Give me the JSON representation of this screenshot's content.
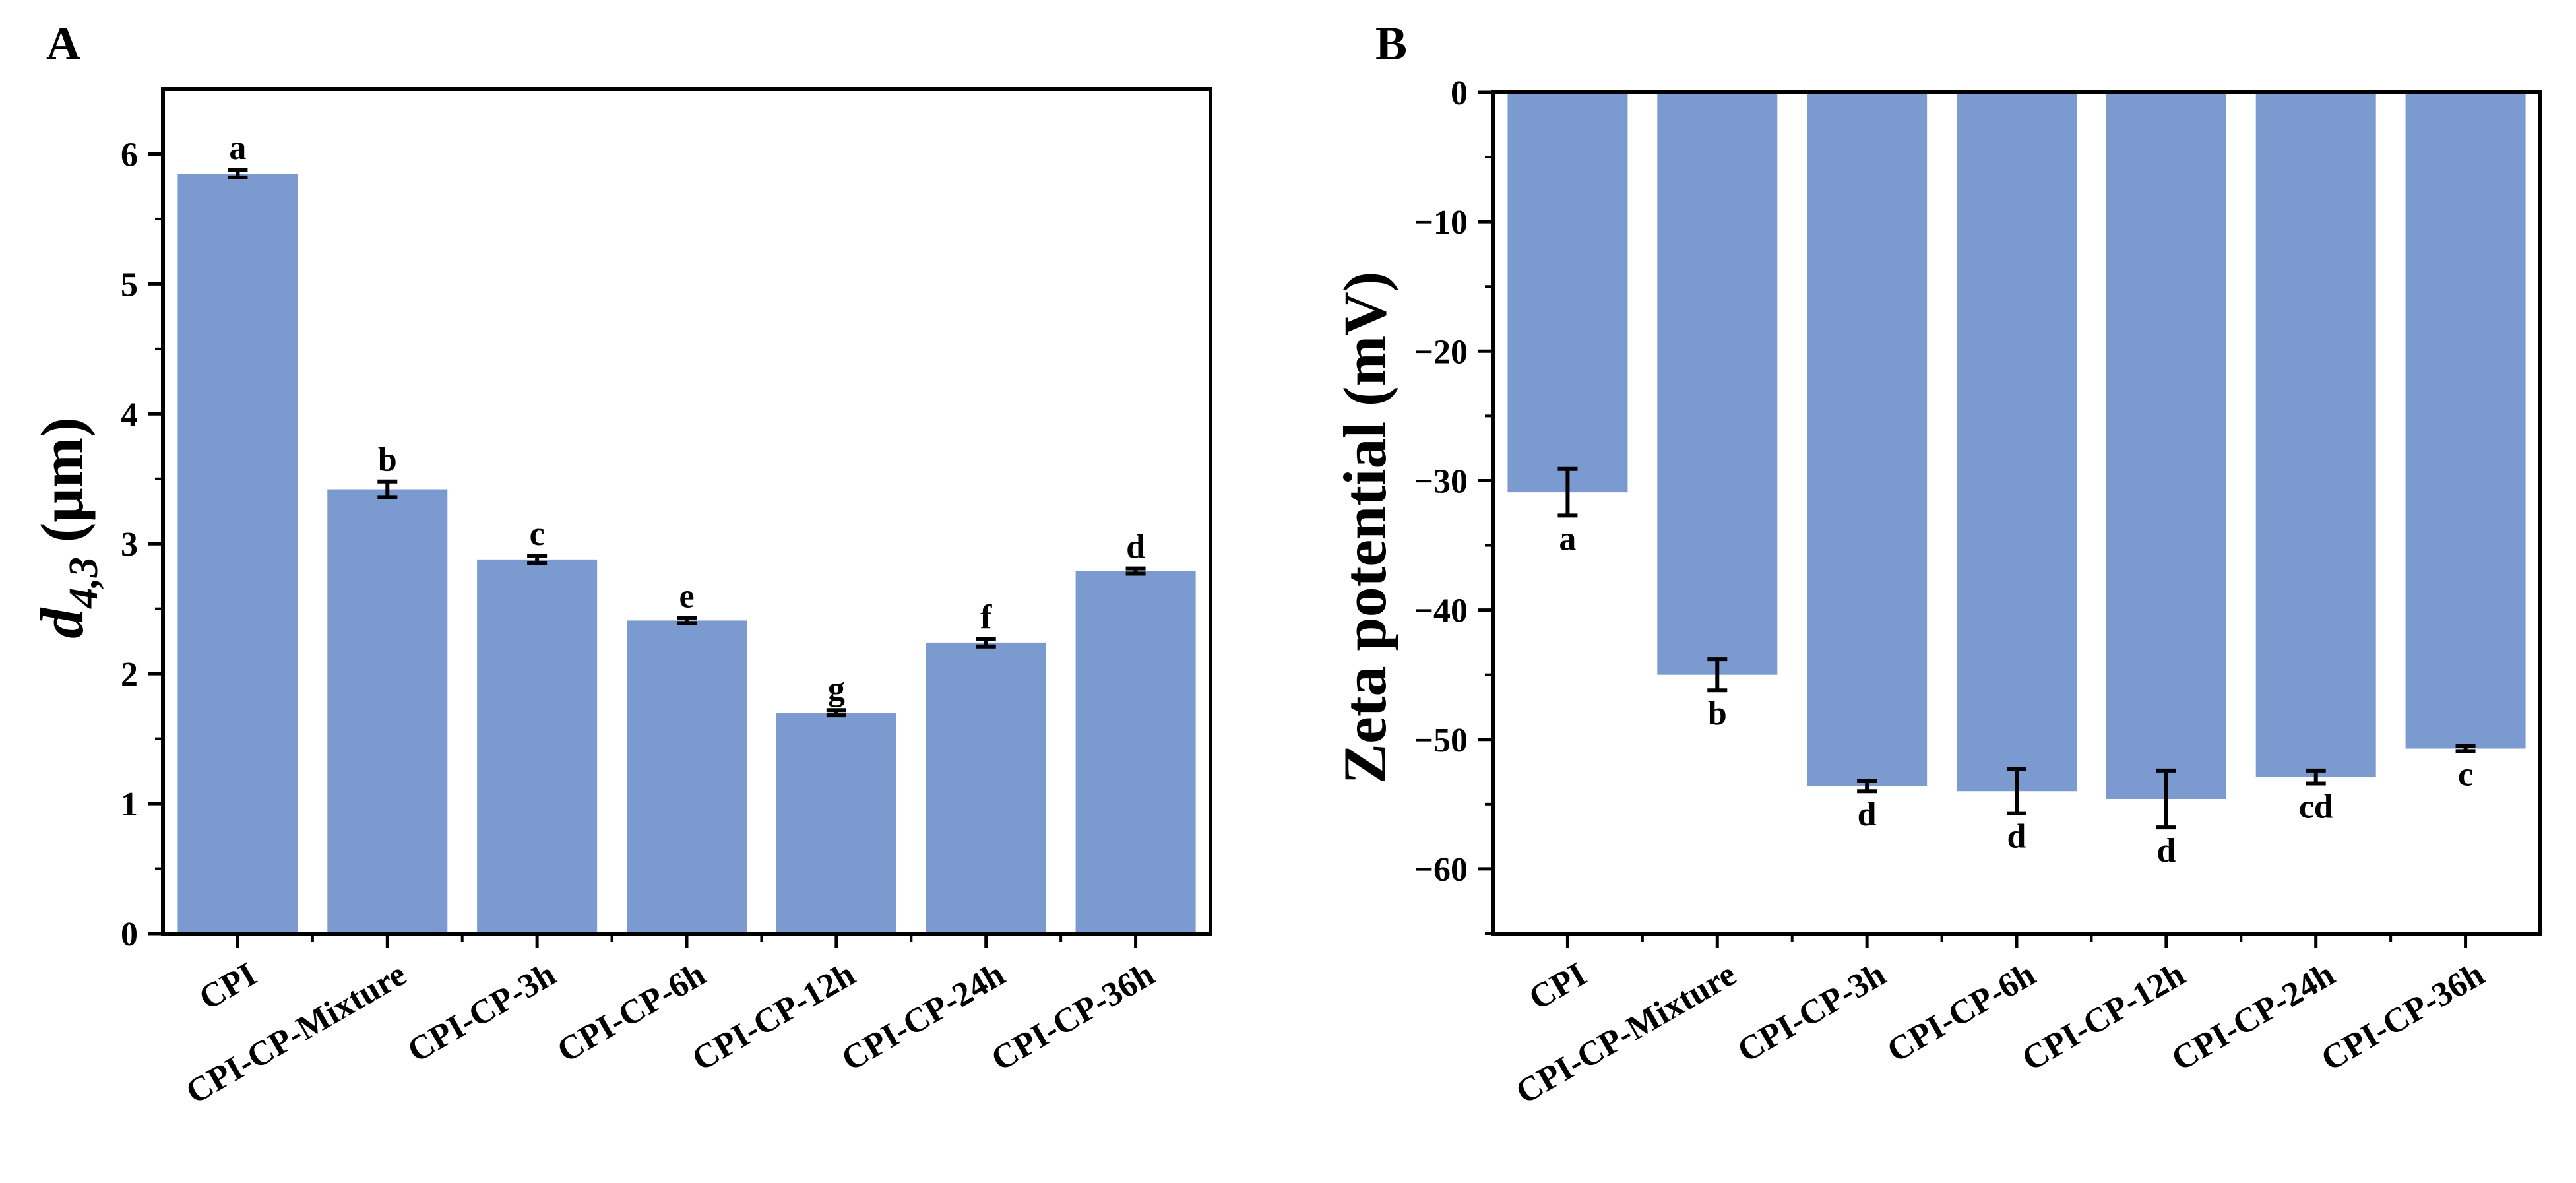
{
  "chart_data": [
    {
      "panel_label": "A",
      "type": "bar",
      "categories": [
        "CPI",
        "CPI-CP-Mixture",
        "CPI-CP-3h",
        "CPI-CP-6h",
        "CPI-CP-12h",
        "CPI-CP-24h",
        "CPI-CP-36h"
      ],
      "values": [
        5.85,
        3.42,
        2.88,
        2.41,
        1.7,
        2.24,
        2.79
      ],
      "errors": [
        0.03,
        0.06,
        0.03,
        0.02,
        0.02,
        0.03,
        0.02
      ],
      "significance": [
        "a",
        "b",
        "c",
        "e",
        "g",
        "f",
        "d"
      ],
      "ylabel_main": "d",
      "ylabel_sub": "4,3",
      "ylabel_unit": "(μm)",
      "ylim": [
        0,
        6.5
      ],
      "yticks": [
        "0",
        "1",
        "2",
        "3",
        "4",
        "5",
        "6"
      ],
      "bar_color": "#7b9acf"
    },
    {
      "panel_label": "B",
      "type": "bar",
      "categories": [
        "CPI",
        "CPI-CP-Mixture",
        "CPI-CP-3h",
        "CPI-CP-6h",
        "CPI-CP-12h",
        "CPI-CP-24h",
        "CPI-CP-36h"
      ],
      "values": [
        -30.9,
        -45.0,
        -53.6,
        -54.0,
        -54.6,
        -52.9,
        -50.7
      ],
      "errors": [
        1.8,
        1.2,
        0.4,
        1.7,
        2.2,
        0.5,
        0.2
      ],
      "significance": [
        "a",
        "b",
        "d",
        "d",
        "d",
        "cd",
        "c"
      ],
      "ylabel": "Zeta potential (mV)",
      "ylim": [
        -65,
        0
      ],
      "yticks": [
        "0",
        "−10",
        "−20",
        "−30",
        "−40",
        "−50",
        "−60"
      ],
      "bar_color": "#7b9acf"
    }
  ]
}
